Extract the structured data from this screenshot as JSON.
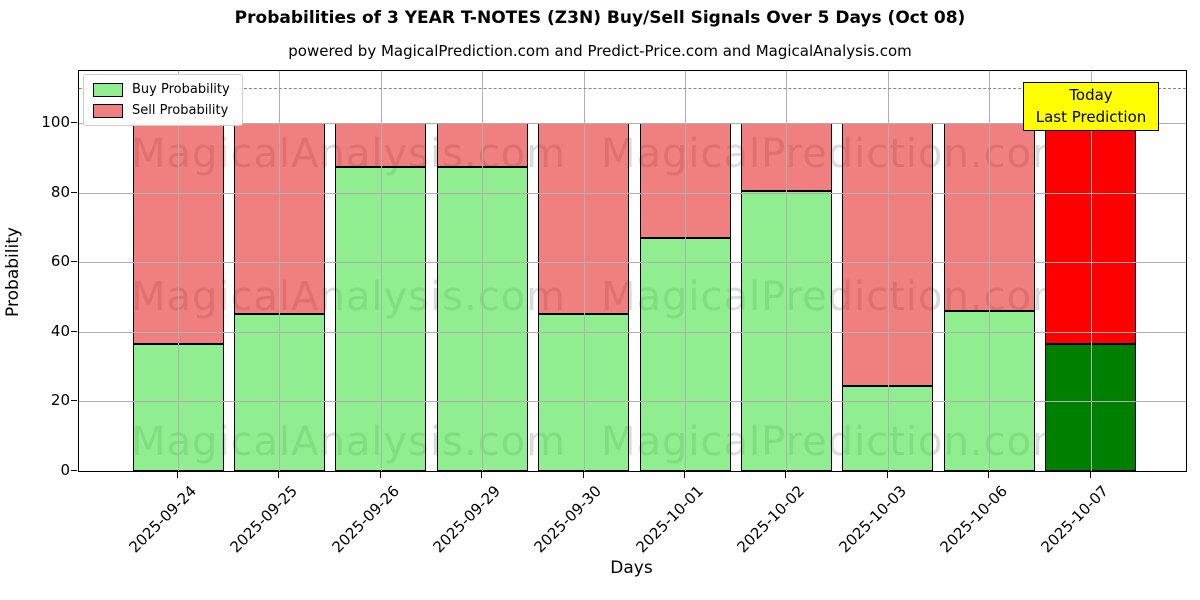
{
  "header": {
    "title": "Probabilities of 3 YEAR T-NOTES (Z3N) Buy/Sell Signals Over 5 Days (Oct 08)",
    "subtitle": "powered by MagicalPrediction.com and Predict-Price.com and MagicalAnalysis.com"
  },
  "legend": {
    "buy_label": "Buy Probability",
    "sell_label": "Sell Probability"
  },
  "annotation": {
    "line1": "Today",
    "line2": "Last Prediction"
  },
  "watermarks": {
    "left": "MagicalAnalysis.com",
    "right": "MagicalPrediction.com"
  },
  "colors": {
    "buy": "#90EE90",
    "sell": "#F08080",
    "today_buy": "#008000",
    "today_sell": "#FF0000",
    "annotation_bg": "#FFFF00",
    "grid": "#B0B0B0",
    "dashed_line": "#888888"
  },
  "chart_data": {
    "type": "bar",
    "stacked": true,
    "title": "Probabilities of 3 YEAR T-NOTES (Z3N) Buy/Sell Signals Over 5 Days (Oct 08)",
    "subtitle": "powered by MagicalPrediction.com and Predict-Price.com and MagicalAnalysis.com",
    "xlabel": "Days",
    "ylabel": "Probability",
    "categories": [
      "2025-09-24",
      "2025-09-25",
      "2025-09-26",
      "2025-09-29",
      "2025-09-30",
      "2025-10-01",
      "2025-10-02",
      "2025-10-03",
      "2025-10-06",
      "2025-10-07"
    ],
    "series": [
      {
        "name": "Buy Probability",
        "values": [
          36.5,
          45,
          87.5,
          87.5,
          45,
          67,
          80.5,
          24.5,
          46,
          36.5
        ]
      },
      {
        "name": "Sell Probability",
        "values": [
          63.5,
          55,
          12.5,
          12.5,
          55,
          33,
          19.5,
          75.5,
          54,
          63.5
        ]
      }
    ],
    "today_index": 9,
    "today_annotation": "Today Last Prediction",
    "ylim": [
      0,
      115
    ],
    "yticks": [
      0,
      20,
      40,
      60,
      80,
      100
    ],
    "dashed_line_y": 110,
    "grid": true,
    "legend_position": "upper left"
  }
}
